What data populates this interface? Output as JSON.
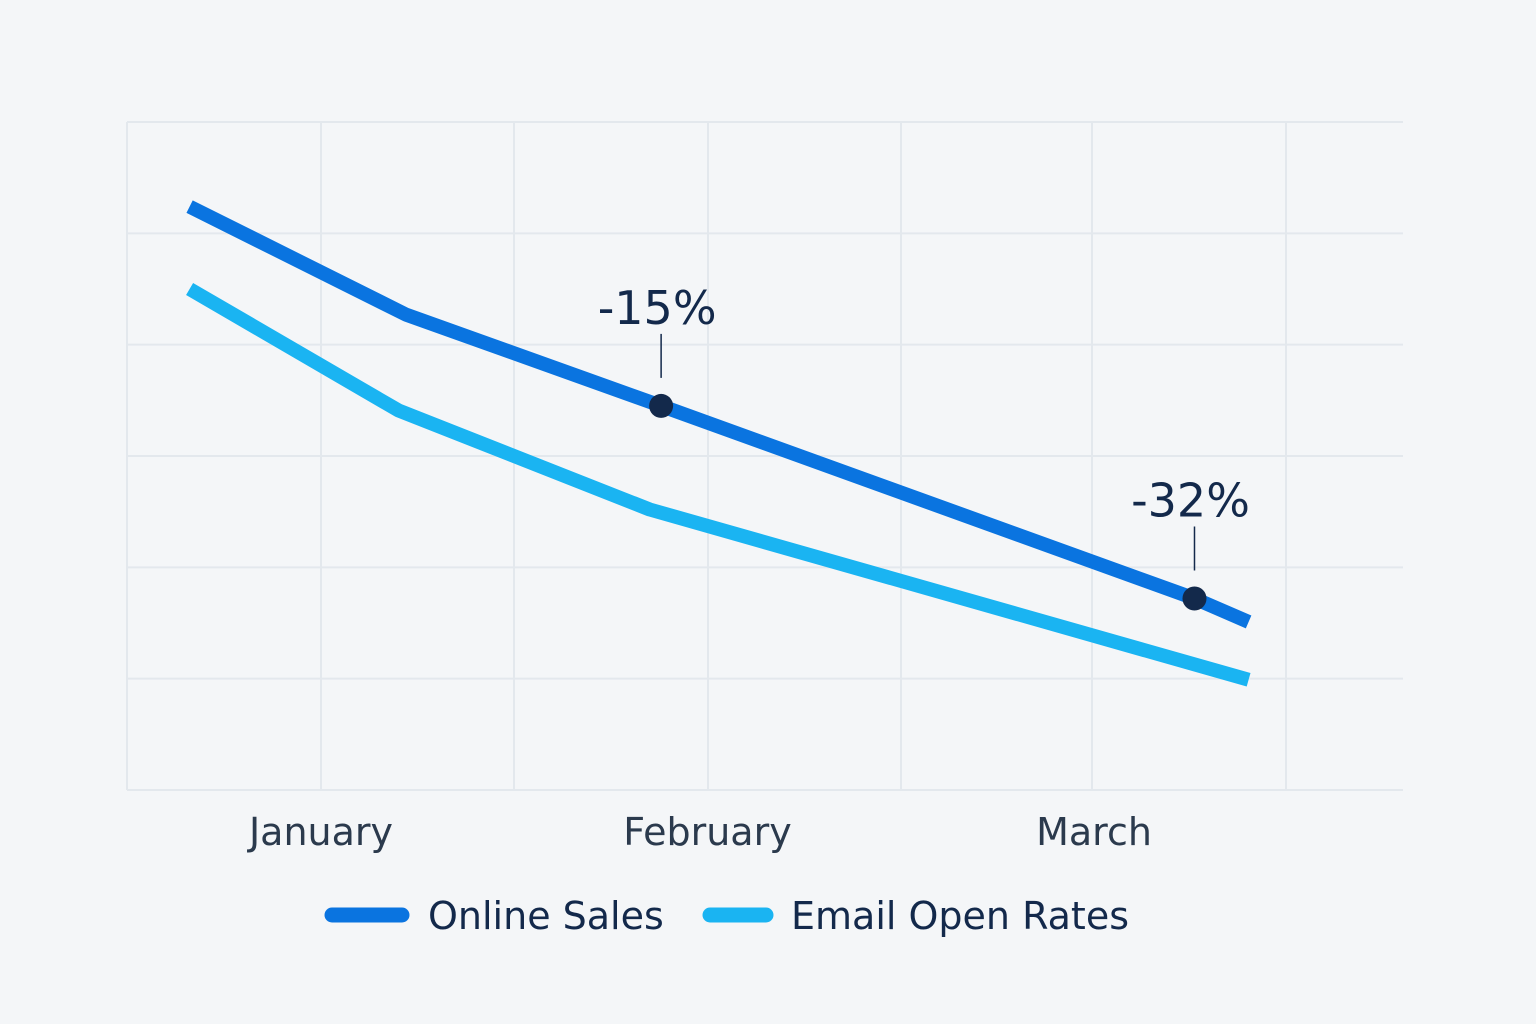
{
  "chart_data": {
    "type": "line",
    "title": "",
    "xlabel": "",
    "ylabel": "",
    "categories": [
      "January",
      "February",
      "March"
    ],
    "xlim": [
      -0.5,
      2.8
    ],
    "ylim": [
      0,
      6
    ],
    "grid": true,
    "legend_position": "bottom",
    "series": [
      {
        "name": "Online Sales",
        "color": "#0a74e0",
        "x": [
          -0.34,
          0.22,
          0.88,
          2.26,
          2.4
        ],
        "y": [
          5.24,
          4.27,
          3.45,
          1.72,
          1.51
        ]
      },
      {
        "name": "Email Open Rates",
        "color": "#1ab4f2",
        "x": [
          -0.34,
          0.2,
          0.85,
          2.4
        ],
        "y": [
          4.5,
          3.41,
          2.52,
          0.99
        ]
      }
    ],
    "annotations": [
      {
        "text": "-15%",
        "series": "Online Sales",
        "x": 0.88,
        "y": 3.45
      },
      {
        "text": "-32%",
        "series": "Online Sales",
        "x": 2.26,
        "y": 1.72
      }
    ]
  }
}
